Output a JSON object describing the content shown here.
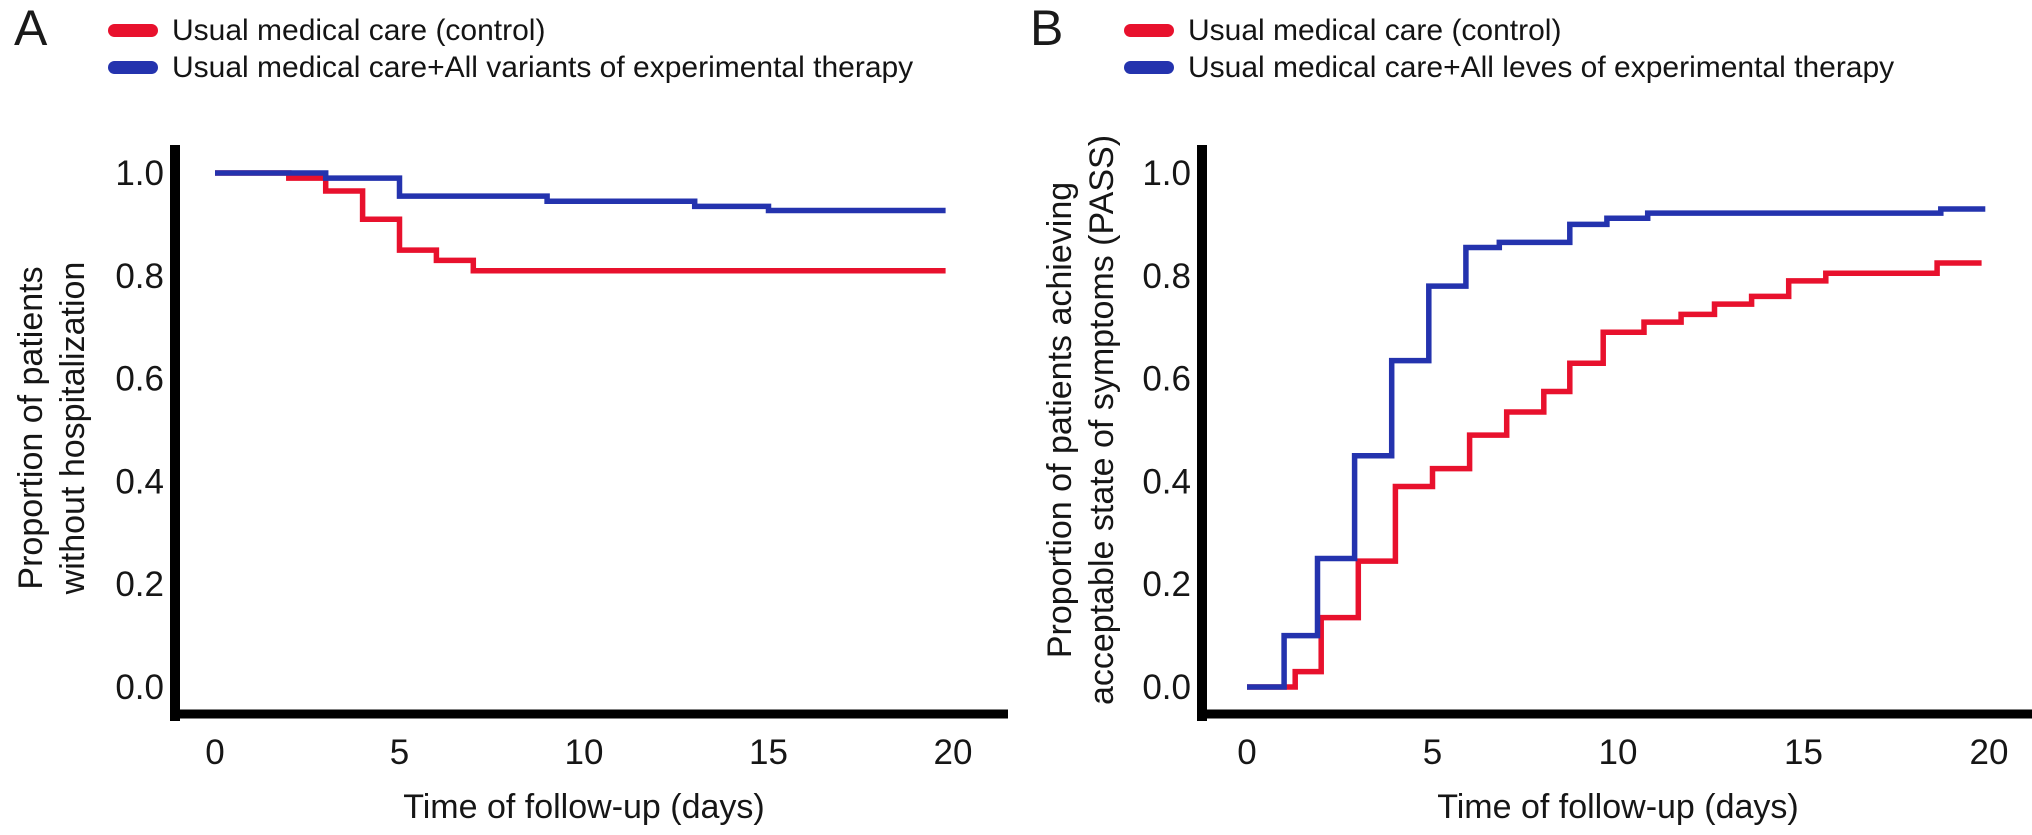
{
  "figure_type": "kaplan-meier-two-panel",
  "colors": {
    "control_red": "#e8112d",
    "experimental_blue": "#2433ae",
    "axis": "#000000",
    "background": "#ffffff"
  },
  "panels": [
    {
      "label": "A",
      "legend": [
        {
          "label": "Usual medical care (control)",
          "color": "#e8112d"
        },
        {
          "label": "Usual medical care+All variants of experimental therapy",
          "color": "#2433ae"
        }
      ],
      "ylabel_line1": "Proportion of patients",
      "ylabel_line2": "without hospitalization",
      "xlabel": "Time of follow-up (days)"
    },
    {
      "label": "B",
      "legend": [
        {
          "label": "Usual medical care (control)",
          "color": "#e8112d"
        },
        {
          "label": "Usual medical care+All leves of experimental therapy",
          "color": "#2433ae"
        }
      ],
      "ylabel_line1": "Proportion of patients achieving",
      "ylabel_line2": "acceptable state of symptoms (PASS)",
      "xlabel": "Time of follow-up (days)"
    }
  ],
  "chart_data": [
    {
      "type": "line",
      "subtype": "kaplan-meier-step",
      "panel": "A",
      "title": "",
      "xlabel": "Time of follow-up (days)",
      "ylabel": "Proportion of patients without hospitalization",
      "xlim": [
        0,
        21.5
      ],
      "ylim": [
        0,
        1.05
      ],
      "xticks": [
        0,
        5,
        10,
        15,
        20
      ],
      "yticks": [
        "1.0",
        "0.8",
        "0.6",
        "0.4",
        "0.2",
        "0.0"
      ],
      "grid": false,
      "legend_position": "above-plot-top-left",
      "series": [
        {
          "name": "Usual medical care (control)",
          "color": "#e8112d",
          "step_points": [
            [
              0,
              1.0
            ],
            [
              2,
              0.99
            ],
            [
              3,
              0.965
            ],
            [
              4,
              0.91
            ],
            [
              5,
              0.85
            ],
            [
              6,
              0.83
            ],
            [
              7,
              0.81
            ],
            [
              19.8,
              0.81
            ]
          ]
        },
        {
          "name": "Usual medical care+All variants of experimental therapy",
          "color": "#2433ae",
          "step_points": [
            [
              0,
              1.0
            ],
            [
              3,
              0.99
            ],
            [
              5,
              0.955
            ],
            [
              9,
              0.945
            ],
            [
              13,
              0.935
            ],
            [
              15,
              0.927
            ],
            [
              19.8,
              0.927
            ]
          ]
        }
      ]
    },
    {
      "type": "line",
      "subtype": "kaplan-meier-step-cumulative",
      "panel": "B",
      "title": "",
      "xlabel": "Time of follow-up (days)",
      "ylabel": "Proportion of patients achieving acceptable state of symptoms (PASS)",
      "xlim": [
        0,
        21.5
      ],
      "ylim": [
        0,
        1.05
      ],
      "xticks": [
        0,
        5,
        10,
        15,
        20
      ],
      "yticks": [
        "1.0",
        "0.8",
        "0.6",
        "0.4",
        "0.2",
        "0.0"
      ],
      "grid": false,
      "legend_position": "above-plot-top-left",
      "series": [
        {
          "name": "Usual medical care (control)",
          "color": "#e8112d",
          "step_points": [
            [
              0,
              0.0
            ],
            [
              1.3,
              0.03
            ],
            [
              2,
              0.135
            ],
            [
              3,
              0.245
            ],
            [
              4,
              0.39
            ],
            [
              5,
              0.425
            ],
            [
              6,
              0.49
            ],
            [
              7,
              0.535
            ],
            [
              8,
              0.575
            ],
            [
              8.7,
              0.63
            ],
            [
              9.6,
              0.69
            ],
            [
              10.7,
              0.71
            ],
            [
              11.7,
              0.725
            ],
            [
              12.6,
              0.745
            ],
            [
              13.6,
              0.76
            ],
            [
              14.6,
              0.79
            ],
            [
              15.6,
              0.805
            ],
            [
              18.6,
              0.825
            ],
            [
              19.8,
              0.825
            ]
          ]
        },
        {
          "name": "Usual medical care+All leves of experimental therapy",
          "color": "#2433ae",
          "step_points": [
            [
              0,
              0.0
            ],
            [
              1,
              0.1
            ],
            [
              1.9,
              0.25
            ],
            [
              2.9,
              0.45
            ],
            [
              3.9,
              0.635
            ],
            [
              4.9,
              0.78
            ],
            [
              5.9,
              0.855
            ],
            [
              6.8,
              0.865
            ],
            [
              8.7,
              0.9
            ],
            [
              9.7,
              0.912
            ],
            [
              10.8,
              0.922
            ],
            [
              18.7,
              0.93
            ],
            [
              19.9,
              0.93
            ]
          ]
        }
      ]
    }
  ]
}
